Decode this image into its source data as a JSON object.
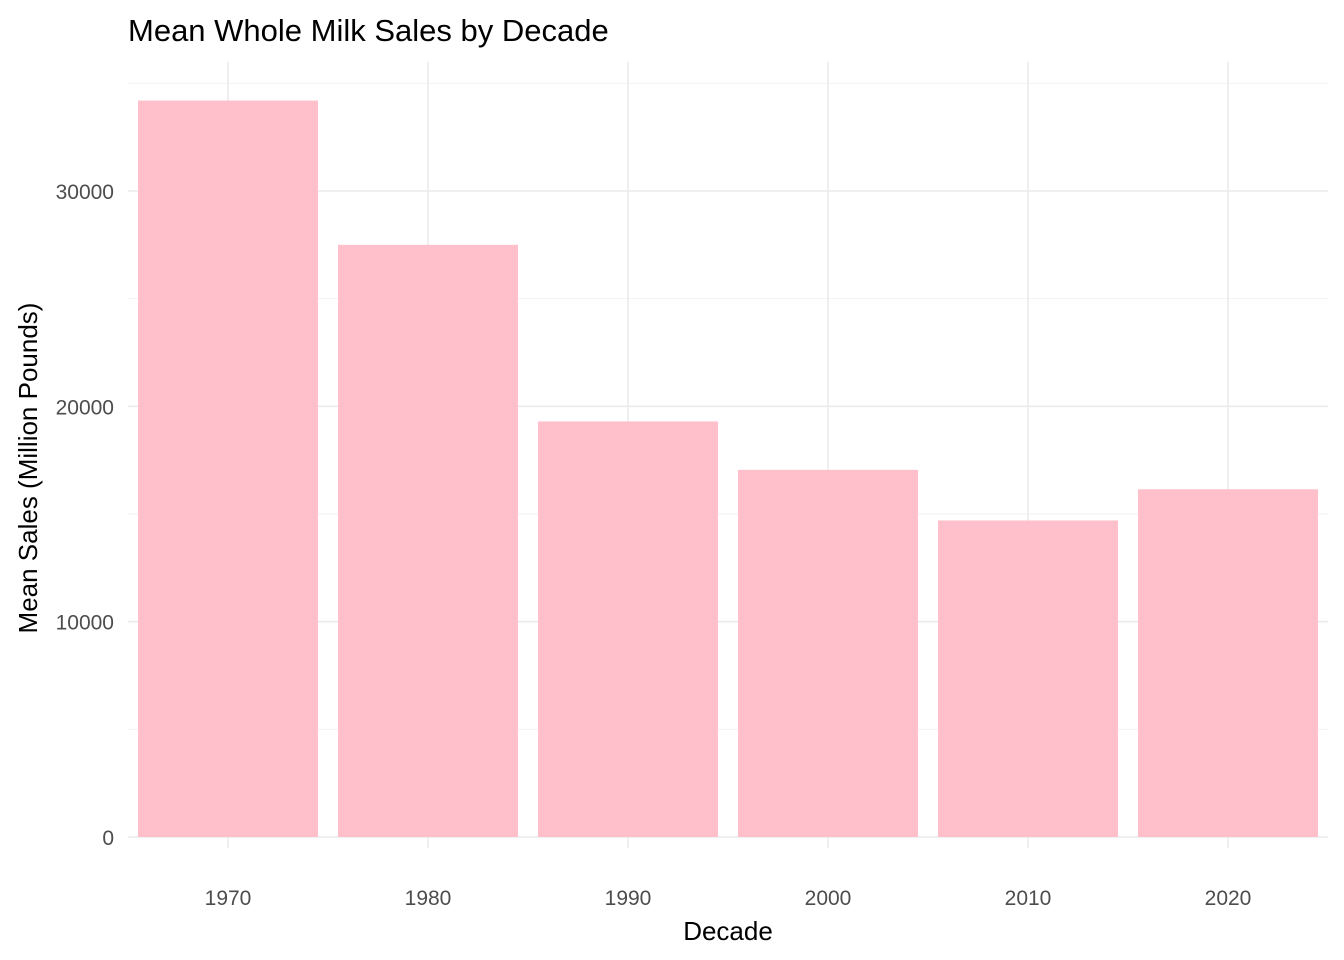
{
  "chart_data": {
    "type": "bar",
    "title": "Mean Whole Milk Sales by Decade",
    "xlabel": "Decade",
    "ylabel": "Mean Sales (Million Pounds)",
    "categories": [
      "1970",
      "1980",
      "1990",
      "2000",
      "2010",
      "2020"
    ],
    "values": [
      34200,
      27500,
      19300,
      17050,
      14700,
      16150
    ],
    "ylim": [
      0,
      36000
    ],
    "y_ticks": [
      0,
      10000,
      20000,
      30000
    ],
    "y_tick_labels": [
      "0",
      "10000",
      "20000",
      "30000"
    ],
    "y_minor_ticks": [
      5000,
      15000,
      25000,
      35000
    ],
    "bar_color": "#FFC0CB",
    "grid": true,
    "legend": "none"
  }
}
